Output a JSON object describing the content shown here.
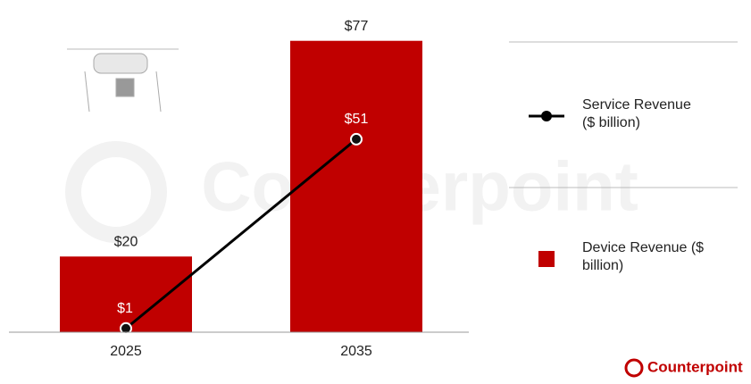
{
  "chart_data": {
    "type": "bar",
    "categories": [
      "2025",
      "2035"
    ],
    "series": [
      {
        "name": "Device Revenue ($ billion)",
        "type": "bar",
        "color": "#c00000",
        "values": [
          20,
          77
        ],
        "value_labels": [
          "$20",
          "$77"
        ]
      },
      {
        "name": "Service Revenue ($ billion)",
        "type": "line",
        "color": "#000000",
        "values": [
          1,
          51
        ],
        "value_labels": [
          "$1",
          "$51"
        ]
      }
    ],
    "ylim": [
      0,
      80
    ],
    "watermark": "Counterpoint",
    "logo": "Counterpoint"
  }
}
